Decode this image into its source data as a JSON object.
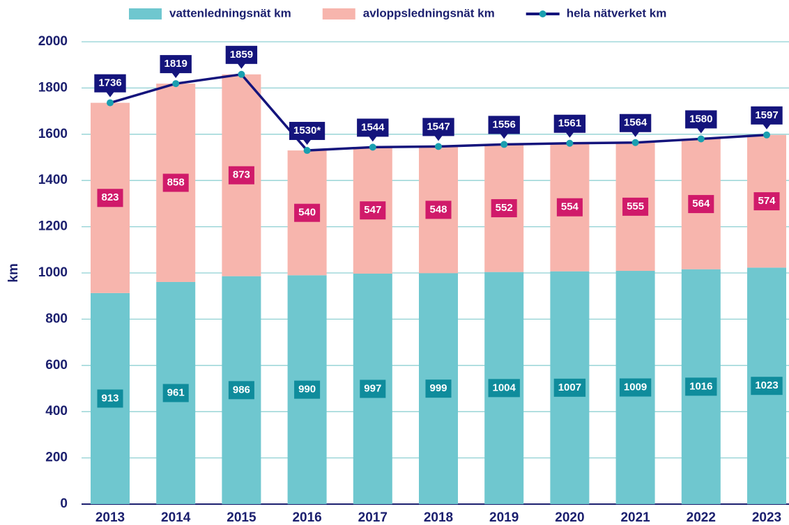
{
  "chart_data": {
    "type": "bar",
    "stacked": true,
    "y_label": "km",
    "categories": [
      "2013",
      "2014",
      "2015",
      "2016",
      "2017",
      "2018",
      "2019",
      "2020",
      "2021",
      "2022",
      "2023"
    ],
    "series": [
      {
        "name": "vattenledningsnät km",
        "type": "bar",
        "color": "#6fc7cf",
        "label_color": "#0f8c9c",
        "values": [
          913,
          961,
          986,
          990,
          997,
          999,
          1004,
          1007,
          1009,
          1016,
          1023
        ]
      },
      {
        "name": "avloppsledningsnät km",
        "type": "bar",
        "color": "#f7b5ad",
        "label_color": "#d01a6a",
        "values": [
          823,
          858,
          873,
          540,
          547,
          548,
          552,
          554,
          555,
          564,
          574
        ]
      },
      {
        "name": "hela nätverket km",
        "type": "line",
        "color": "#14147c",
        "marker_color": "#1a9fb0",
        "label_color": "#14147c",
        "values": [
          1736,
          1819,
          1859,
          1530,
          1544,
          1547,
          1556,
          1561,
          1564,
          1580,
          1597
        ],
        "value_labels": [
          "1736",
          "1819",
          "1859",
          "1530*",
          "1544",
          "1547",
          "1556",
          "1561",
          "1564",
          "1580",
          "1597"
        ]
      }
    ],
    "ylim": [
      0,
      2000
    ],
    "yticks": [
      0,
      200,
      400,
      600,
      800,
      1000,
      1200,
      1400,
      1600,
      1800,
      2000
    ],
    "grid": true,
    "legend": "top"
  }
}
